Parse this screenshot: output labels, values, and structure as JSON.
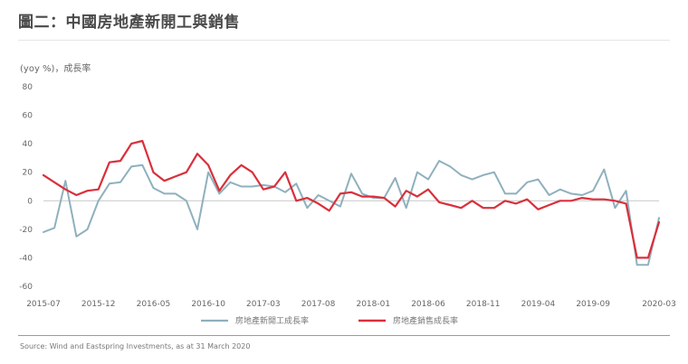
{
  "title": "圖二：中國房地產新開工與銷售",
  "unit_label": "(yoy %)，成長率",
  "source": "Source: Wind and Eastspring Investments, as at 31 March 2020",
  "chart_data": {
    "type": "line",
    "ylim": [
      -60,
      80
    ],
    "yticks": [
      80,
      60,
      40,
      20,
      0,
      -20,
      -40,
      -60
    ],
    "xlim": [
      0,
      56
    ],
    "xtick_labels": [
      "2015-07",
      "2015-12",
      "2016-05",
      "2016-10",
      "2017-03",
      "2017-08",
      "2018-01",
      "2018-06",
      "2018-11",
      "2019-04",
      "2019-09",
      "2020-03"
    ],
    "xtick_positions": [
      0,
      5,
      10,
      15,
      20,
      25,
      30,
      35,
      40,
      45,
      50,
      56
    ],
    "grid": false,
    "legend_position": "bottom-center",
    "series": [
      {
        "name": "房地產新開工成長率",
        "color": "#8fb0bd",
        "values": [
          -22,
          -19,
          14,
          -25,
          -20,
          0,
          12,
          13,
          24,
          25,
          9,
          5,
          5,
          0,
          -20,
          20,
          5,
          13,
          10,
          10,
          11,
          10,
          6,
          12,
          -5,
          4,
          0,
          -4,
          19,
          5,
          2,
          2,
          16,
          -5,
          20,
          15,
          28,
          24,
          18,
          15,
          18,
          20,
          5,
          5,
          13,
          15,
          4,
          8,
          5,
          4,
          7,
          22,
          -5,
          7,
          -45,
          -45,
          -12
        ]
      },
      {
        "name": "房地產銷售成長率",
        "color": "#d9303b",
        "values": [
          18,
          13,
          8,
          4,
          7,
          8,
          27,
          28,
          40,
          42,
          20,
          14,
          17,
          20,
          33,
          25,
          7,
          18,
          25,
          20,
          8,
          10,
          20,
          0,
          2,
          -2,
          -7,
          5,
          6,
          3,
          3,
          2,
          -4,
          7,
          3,
          8,
          -1,
          -3,
          -5,
          0,
          -5,
          -5,
          0,
          -2,
          1,
          -6,
          -3,
          0,
          0,
          2,
          1,
          1,
          0,
          -2,
          -40,
          -40,
          -15
        ]
      }
    ]
  }
}
